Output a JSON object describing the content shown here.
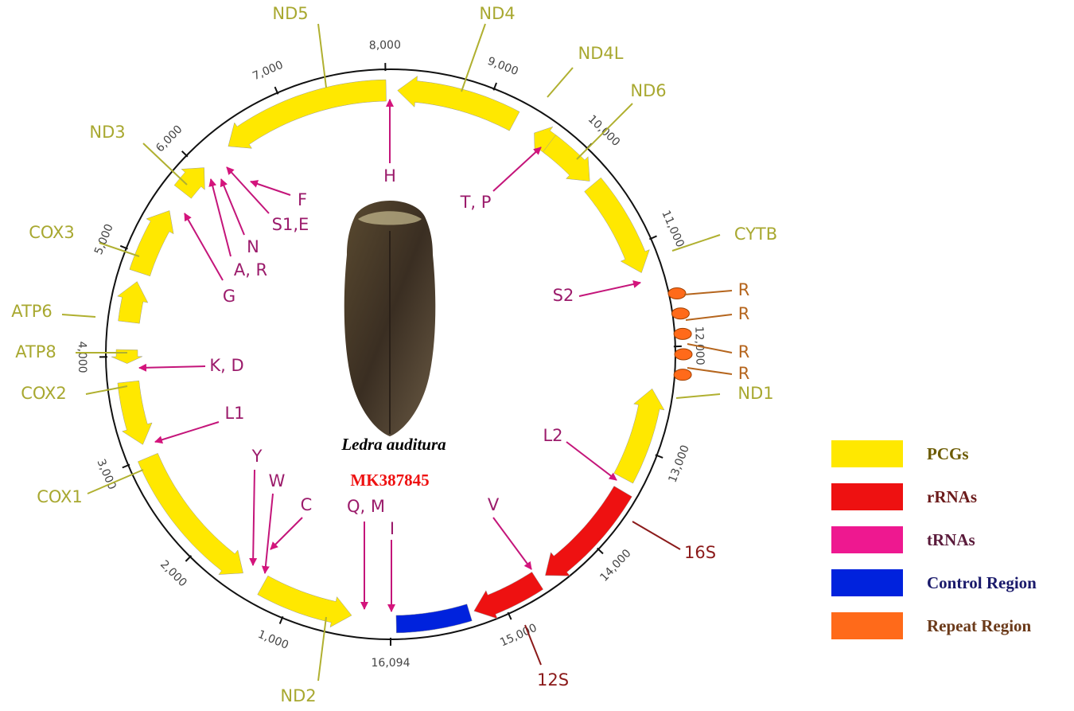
{
  "map": {
    "species": "Ledra auditura",
    "accession": "MK387845",
    "scale_ticks": [
      "1,000",
      "2,000",
      "3,000",
      "4,000",
      "5,000",
      "6,000",
      "7,000",
      "8,000",
      "9,000",
      "10,000",
      "11,000",
      "12,000",
      "13,000",
      "14,000",
      "15,000",
      "16,094"
    ]
  },
  "legend": [
    {
      "label": "PCGs",
      "color": "#ffe800",
      "features": [
        "ND5",
        "ND4",
        "ND4L",
        "ND6",
        "CYTB",
        "ND1",
        "ND2",
        "COX1",
        "COX2",
        "ATP8",
        "ATP6",
        "COX3",
        "ND3"
      ]
    },
    {
      "label": "rRNAs",
      "color": "#ee1111",
      "features": [
        "16S",
        "12S"
      ]
    },
    {
      "label": "tRNAs",
      "color": "#ee1890",
      "features": [
        "H",
        "T, P",
        "S2",
        "L2",
        "V",
        "Q, M",
        "I",
        "C",
        "W",
        "Y",
        "L1",
        "K, D",
        "G",
        "A, R",
        "N",
        "S1,E",
        "F"
      ]
    },
    {
      "label": "Control Region",
      "color": "#0022dd",
      "features": []
    },
    {
      "label": "Repeat Region",
      "color": "#ff6a1a",
      "features": [
        "R",
        "R",
        "R",
        "R"
      ]
    }
  ]
}
